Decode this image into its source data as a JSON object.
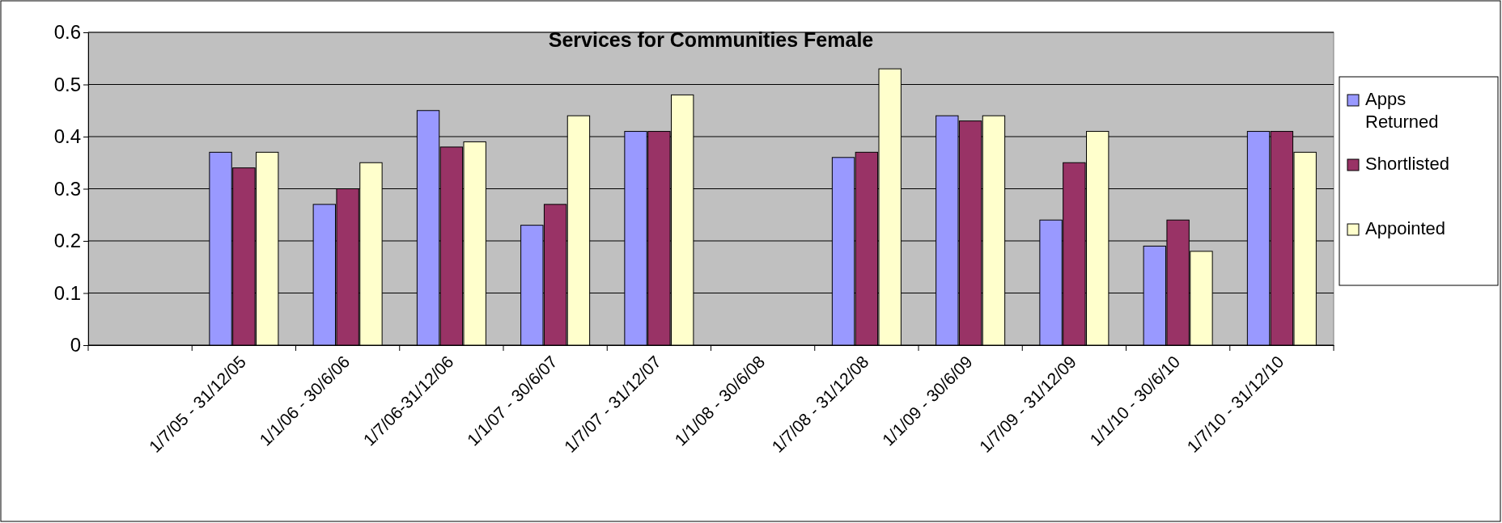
{
  "chart_data": {
    "type": "bar",
    "title": "Services for Communities Female",
    "categories": [
      null,
      "1/7/05 - 31/12/05",
      "1/1/06 - 30/6/06",
      "1/7/06-31/12/06",
      "1/1/07 - 30/6/07",
      "1/7/07 - 31/12/07",
      "1/1/08 - 30/6/08",
      "1/7/08 - 31/12/08",
      "1/1/09 - 30/6/09",
      "1/7/09 - 31/12/09",
      "1/1/10 - 30/6/10",
      "1/7/10 - 31/12/10"
    ],
    "series": [
      {
        "name": "Apps Returned",
        "color": "#9999ff",
        "values": [
          null,
          0.37,
          0.27,
          0.45,
          0.23,
          0.41,
          null,
          0.36,
          0.44,
          0.24,
          0.19,
          0.41
        ]
      },
      {
        "name": "Shortlisted",
        "color": "#993366",
        "values": [
          null,
          0.34,
          0.3,
          0.38,
          0.27,
          0.41,
          null,
          0.37,
          0.43,
          0.35,
          0.24,
          0.41
        ]
      },
      {
        "name": "Appointed",
        "color": "#ffffcc",
        "values": [
          null,
          0.37,
          0.35,
          0.39,
          0.44,
          0.48,
          null,
          0.53,
          0.44,
          0.41,
          0.18,
          0.37
        ]
      }
    ],
    "ylim": [
      0,
      0.6
    ],
    "yticks": [
      0,
      0.1,
      0.2,
      0.3,
      0.4,
      0.5,
      0.6
    ],
    "grid": "y",
    "legend": "right"
  }
}
